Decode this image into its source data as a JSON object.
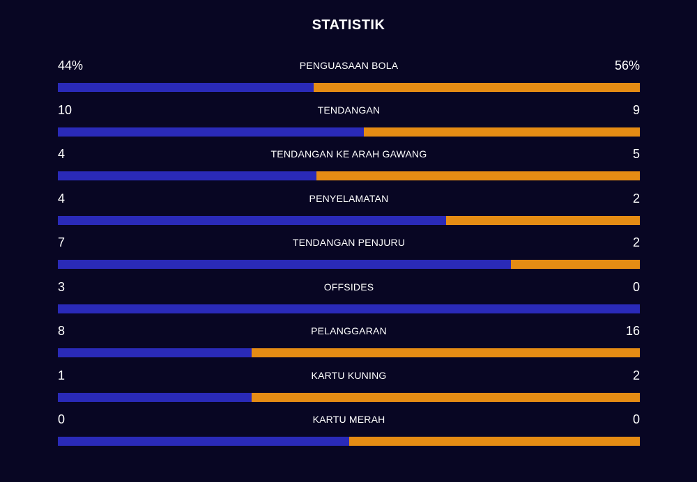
{
  "title": "STATISTIK",
  "colors": {
    "background": "#080623",
    "home": "#2a2ab8",
    "away": "#e58c14"
  },
  "stats": [
    {
      "label": "PENGUASAAN BOLA",
      "home": "44%",
      "away": "56%",
      "home_share": 0.44
    },
    {
      "label": "TENDANGAN",
      "home": "10",
      "away": "9",
      "home_share": 0.526
    },
    {
      "label": "TENDANGAN KE ARAH GAWANG",
      "home": "4",
      "away": "5",
      "home_share": 0.444
    },
    {
      "label": "PENYELAMATAN",
      "home": "4",
      "away": "2",
      "home_share": 0.667
    },
    {
      "label": "TENDANGAN PENJURU",
      "home": "7",
      "away": "2",
      "home_share": 0.778
    },
    {
      "label": "OFFSIDES",
      "home": "3",
      "away": "0",
      "home_share": 1.0
    },
    {
      "label": "PELANGGARAN",
      "home": "8",
      "away": "16",
      "home_share": 0.333
    },
    {
      "label": "KARTU KUNING",
      "home": "1",
      "away": "2",
      "home_share": 0.333
    },
    {
      "label": "KARTU MERAH",
      "home": "0",
      "away": "0",
      "home_share": 0.5
    }
  ]
}
